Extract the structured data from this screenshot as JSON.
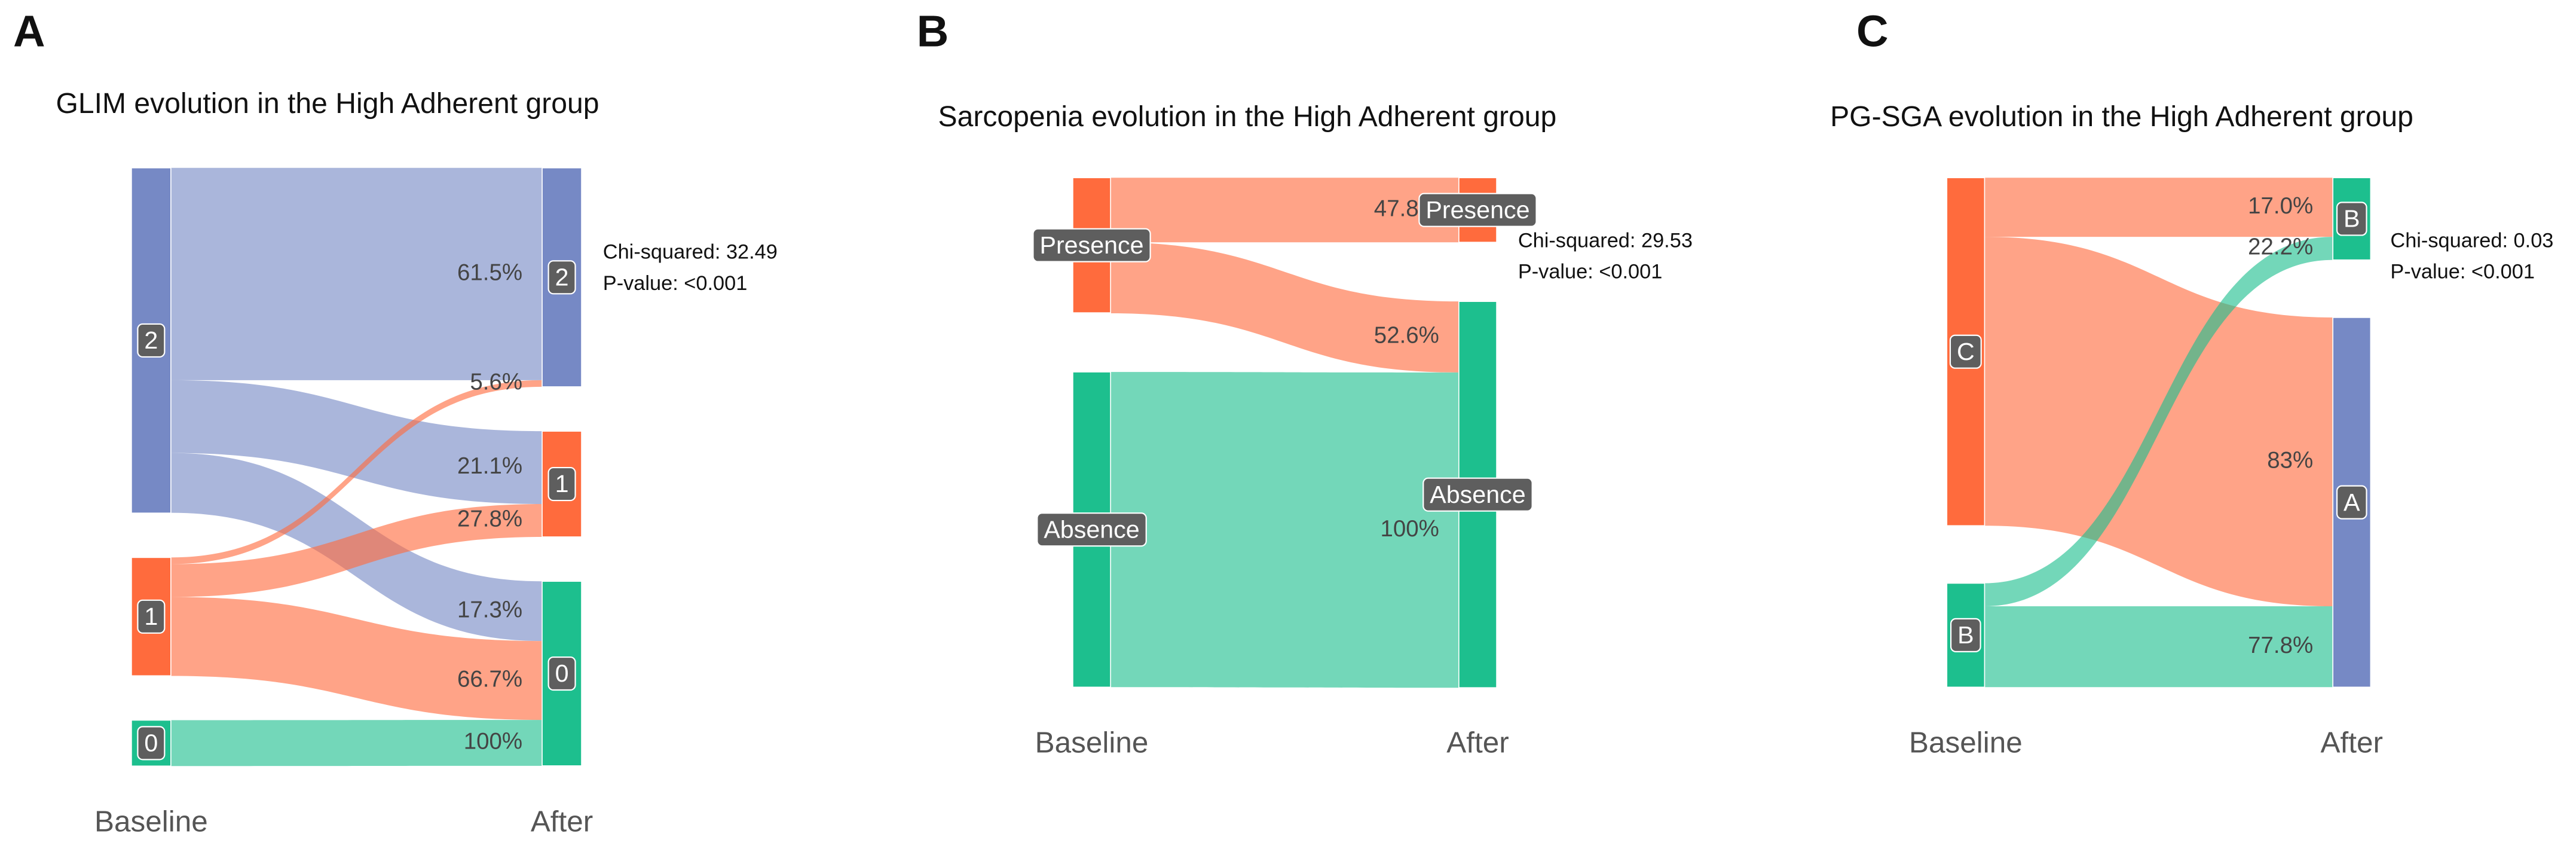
{
  "chart_data": [
    {
      "type": "sankey",
      "panel": "A",
      "title": "GLIM evolution in the High Adherent group",
      "stats": [
        "Chi-squared:  32.49",
        "P-value:  <0.001"
      ],
      "stages": [
        "Baseline",
        "After"
      ],
      "sources": [
        {
          "label": "2",
          "size": 67.7,
          "color": "#7689c5"
        },
        {
          "label": "1",
          "size": 23.2,
          "color": "#ff6b3d"
        },
        {
          "label": "0",
          "size": 9.0,
          "color": "#1dbf8e"
        }
      ],
      "targets": [
        {
          "label": "2",
          "color": "#7689c5"
        },
        {
          "label": "1",
          "color": "#ff6b3d"
        },
        {
          "label": "0",
          "color": "#1dbf8e"
        }
      ],
      "links": [
        {
          "source": 0,
          "target": 0,
          "value": 61.5,
          "label": "61.5%"
        },
        {
          "source": 0,
          "target": 1,
          "value": 21.1,
          "label": "21.1%"
        },
        {
          "source": 0,
          "target": 2,
          "value": 17.3,
          "label": "17.3%"
        },
        {
          "source": 1,
          "target": 0,
          "value": 5.6,
          "label": "5.6%"
        },
        {
          "source": 1,
          "target": 1,
          "value": 27.8,
          "label": "27.8%"
        },
        {
          "source": 1,
          "target": 2,
          "value": 66.7,
          "label": "66.7%"
        },
        {
          "source": 2,
          "target": 2,
          "value": 100,
          "label": "100%"
        }
      ]
    },
    {
      "type": "sankey",
      "panel": "B",
      "title": "Sarcopenia evolution in the High Adherent group",
      "stats": [
        "Chi-squared:  29.53",
        "P-value:  <0.001"
      ],
      "stages": [
        "Baseline",
        "After"
      ],
      "sources": [
        {
          "label": "Presence",
          "size": 30,
          "color": "#ff6b3d"
        },
        {
          "label": "Absence",
          "size": 70,
          "color": "#1dbf8e"
        }
      ],
      "targets": [
        {
          "label": "Presence",
          "color": "#ff6b3d"
        },
        {
          "label": "Absence",
          "color": "#1dbf8e"
        }
      ],
      "links": [
        {
          "source": 0,
          "target": 0,
          "value": 47.8,
          "label": "47.8%"
        },
        {
          "source": 0,
          "target": 1,
          "value": 52.6,
          "label": "52.6%"
        },
        {
          "source": 1,
          "target": 1,
          "value": 100,
          "label": "100%"
        }
      ]
    },
    {
      "type": "sankey",
      "panel": "C",
      "title": "PG-SGA evolution in the High Adherent group",
      "stats": [
        "Chi-squared:  0.03",
        "P-value:  <0.001"
      ],
      "stages": [
        "Baseline",
        "After"
      ],
      "sources": [
        {
          "label": "C",
          "size": 77,
          "color": "#ff6b3d"
        },
        {
          "label": "B",
          "size": 23,
          "color": "#1dbf8e"
        }
      ],
      "targets": [
        {
          "label": "B",
          "color": "#1dbf8e"
        },
        {
          "label": "A",
          "color": "#7689c5"
        }
      ],
      "links": [
        {
          "source": 0,
          "target": 0,
          "value": 17.0,
          "label": "17.0%"
        },
        {
          "source": 0,
          "target": 1,
          "value": 83,
          "label": "83%"
        },
        {
          "source": 1,
          "target": 0,
          "value": 22.2,
          "label": "22.2%"
        },
        {
          "source": 1,
          "target": 1,
          "value": 77.8,
          "label": "77.8%"
        }
      ]
    }
  ]
}
